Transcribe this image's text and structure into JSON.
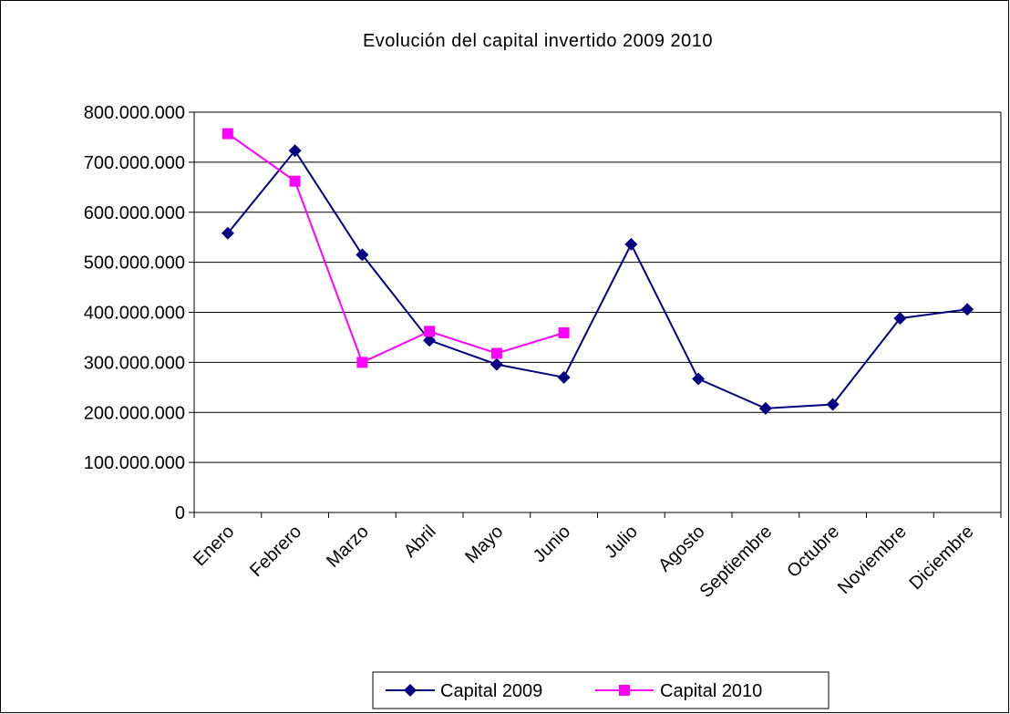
{
  "chart_data": {
    "type": "line",
    "title": "Evolución del capital invertido 2009 2010",
    "xlabel": "",
    "ylabel": "",
    "categories": [
      "Enero",
      "Febrero",
      "Marzo",
      "Abril",
      "Mayo",
      "Junio",
      "Julio",
      "Agosto",
      "Septiembre",
      "Octubre",
      "Noviembre",
      "Diciembre"
    ],
    "y_tick_labels": [
      "0",
      "100.000.000",
      "200.000.000",
      "300.000.000",
      "400.000.000",
      "500.000.000",
      "600.000.000",
      "700.000.000",
      "800.000.000"
    ],
    "ylim": [
      0,
      800000000
    ],
    "grid": true,
    "legend_position": "bottom",
    "series": [
      {
        "name": "Capital 2009",
        "color": "#000080",
        "marker": "diamond",
        "values": [
          558000000,
          723000000,
          515000000,
          344000000,
          296000000,
          270000000,
          536000000,
          267000000,
          208000000,
          216000000,
          388000000,
          406000000
        ]
      },
      {
        "name": "Capital 2010",
        "color": "#ff00ff",
        "marker": "square",
        "values": [
          757000000,
          662000000,
          300000000,
          362000000,
          318000000,
          359000000,
          null,
          null,
          null,
          null,
          null,
          null
        ]
      }
    ]
  }
}
